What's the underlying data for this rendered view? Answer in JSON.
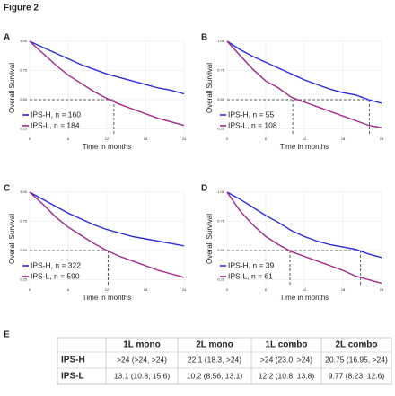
{
  "figure_title": "Figure 2",
  "chart_data": [
    {
      "type": "line",
      "panel": "A",
      "xlabel": "Time in months",
      "ylabel": "Overall Survival",
      "x": [
        0,
        2,
        4,
        6,
        8,
        10,
        12,
        14,
        16,
        18,
        20,
        22,
        24
      ],
      "xlim": [
        0,
        24
      ],
      "xticks": [
        0,
        6,
        12,
        18,
        24
      ],
      "ylim": [
        0.2,
        1.0
      ],
      "yticks": [
        {
          "value": 0.25,
          "label": "0.25"
        },
        {
          "value": 0.5,
          "label": "0.50"
        },
        {
          "value": 0.75,
          "label": "0.75"
        },
        {
          "value": 1,
          "label": "1.00"
        }
      ],
      "grid": true,
      "legend": "bottom-left",
      "reference_y": 0.5,
      "medians": [
        13.1
      ],
      "series": [
        {
          "name": "IPS-H, n = 160",
          "color": "#2b2bd9",
          "values": [
            1,
            0.95,
            0.9,
            0.85,
            0.8,
            0.76,
            0.72,
            0.69,
            0.66,
            0.63,
            0.6,
            0.58,
            0.55
          ]
        },
        {
          "name": "IPS-L, n = 184",
          "color": "#a0288c",
          "values": [
            1,
            0.9,
            0.8,
            0.71,
            0.64,
            0.57,
            0.51,
            0.46,
            0.42,
            0.38,
            0.34,
            0.31,
            0.28
          ]
        }
      ]
    },
    {
      "type": "line",
      "panel": "B",
      "xlabel": "Time in months",
      "ylabel": "Overall Survival",
      "x": [
        0,
        2,
        4,
        6,
        8,
        10,
        12,
        14,
        16,
        18,
        20,
        22,
        24
      ],
      "xlim": [
        0,
        24
      ],
      "xticks": [
        0,
        6,
        12,
        18,
        24
      ],
      "ylim": [
        0.2,
        1.0
      ],
      "yticks": [
        {
          "value": 0.25,
          "label": "0.25"
        },
        {
          "value": 0.5,
          "label": "0.50"
        },
        {
          "value": 0.75,
          "label": "0.75"
        },
        {
          "value": 1,
          "label": "1.00"
        }
      ],
      "grid": true,
      "legend": "bottom-left",
      "reference_y": 0.5,
      "medians": [
        10.2,
        22.1
      ],
      "series": [
        {
          "name": "IPS-H, n = 55",
          "color": "#2b2bd9",
          "values": [
            1,
            0.93,
            0.87,
            0.82,
            0.77,
            0.72,
            0.67,
            0.63,
            0.59,
            0.56,
            0.54,
            0.5,
            0.47
          ]
        },
        {
          "name": "IPS-L, n = 108",
          "color": "#a0288c",
          "values": [
            1,
            0.88,
            0.76,
            0.66,
            0.6,
            0.52,
            0.48,
            0.44,
            0.4,
            0.36,
            0.32,
            0.28,
            0.26
          ]
        }
      ]
    },
    {
      "type": "line",
      "panel": "C",
      "xlabel": "Time in months",
      "ylabel": "Overall Survival",
      "x": [
        0,
        2,
        4,
        6,
        8,
        10,
        12,
        14,
        16,
        18,
        20,
        22,
        24
      ],
      "xlim": [
        0,
        24
      ],
      "xticks": [
        0,
        6,
        12,
        18,
        24
      ],
      "ylim": [
        0.2,
        1.0
      ],
      "yticks": [
        {
          "value": 0.25,
          "label": "0.25"
        },
        {
          "value": 0.5,
          "label": "0.50"
        },
        {
          "value": 0.75,
          "label": "0.75"
        },
        {
          "value": 1,
          "label": "1.00"
        }
      ],
      "grid": true,
      "legend": "bottom-left",
      "reference_y": 0.5,
      "medians": [
        12.2
      ],
      "series": [
        {
          "name": "IPS-H, n = 322",
          "color": "#2b2bd9",
          "values": [
            1,
            0.94,
            0.88,
            0.82,
            0.77,
            0.72,
            0.68,
            0.65,
            0.62,
            0.6,
            0.58,
            0.56,
            0.54
          ]
        },
        {
          "name": "IPS-L, n = 590",
          "color": "#a0288c",
          "values": [
            1,
            0.9,
            0.79,
            0.7,
            0.63,
            0.56,
            0.5,
            0.45,
            0.41,
            0.37,
            0.33,
            0.3,
            0.27
          ]
        }
      ]
    },
    {
      "type": "line",
      "panel": "D",
      "xlabel": "Time in months",
      "ylabel": "Overall Survival",
      "x": [
        0,
        2,
        4,
        6,
        8,
        10,
        12,
        14,
        16,
        18,
        20,
        22,
        24
      ],
      "xlim": [
        0,
        24
      ],
      "xticks": [
        0,
        6,
        12,
        18,
        24
      ],
      "ylim": [
        0.2,
        1.0
      ],
      "yticks": [
        {
          "value": 0.25,
          "label": "0.25"
        },
        {
          "value": 0.5,
          "label": "0.50"
        },
        {
          "value": 0.75,
          "label": "0.75"
        },
        {
          "value": 1,
          "label": "1.00"
        }
      ],
      "grid": true,
      "legend": "bottom-left",
      "reference_y": 0.5,
      "medians": [
        9.77,
        20.75
      ],
      "series": [
        {
          "name": "IPS-H, n = 39",
          "color": "#2b2bd9",
          "values": [
            1,
            0.94,
            0.87,
            0.8,
            0.74,
            0.67,
            0.62,
            0.58,
            0.55,
            0.53,
            0.51,
            0.47,
            0.44
          ]
        },
        {
          "name": "IPS-L, n = 61",
          "color": "#a0288c",
          "values": [
            1,
            0.84,
            0.72,
            0.62,
            0.55,
            0.49,
            0.45,
            0.41,
            0.37,
            0.33,
            0.28,
            0.25,
            0.22
          ]
        }
      ]
    }
  ],
  "table": {
    "panel": "E",
    "header": [
      "1L mono",
      "2L mono",
      "1L combo",
      "2L combo"
    ],
    "rows": [
      {
        "label": "IPS-H",
        "cells": [
          ">24 (>24, >24)",
          "22.1 (18.3, >24)",
          ">24 (23.0, >24)",
          "20.75 (16.95, >24)"
        ]
      },
      {
        "label": "IPS-L",
        "cells": [
          "13.1 (10.8, 15.6)",
          "10.2 (8.56, 13.1)",
          "12.2 (10.8, 13.8)",
          "9.77 (8.23, 12.6)"
        ]
      }
    ]
  }
}
